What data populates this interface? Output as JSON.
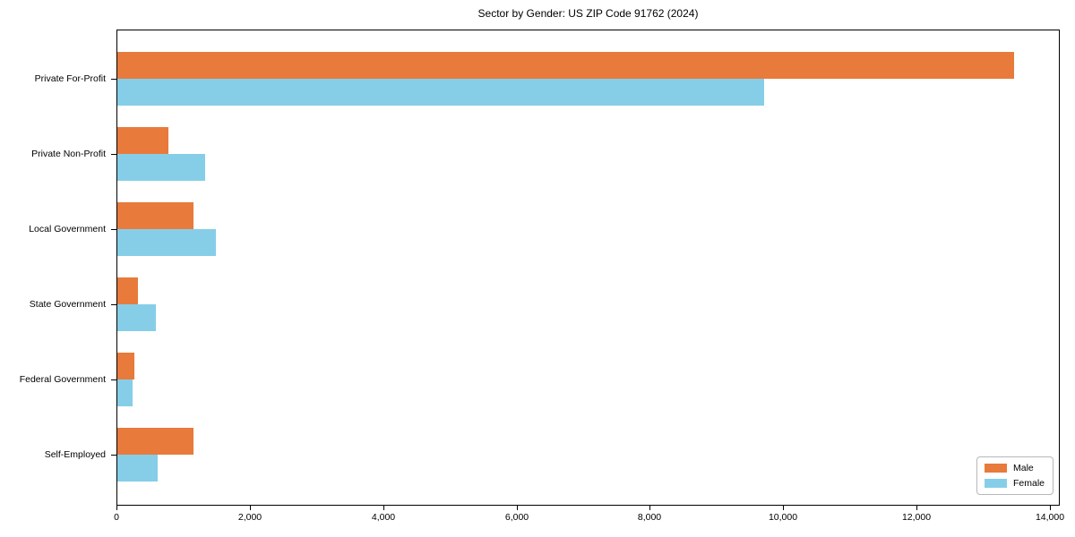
{
  "chart_data": {
    "type": "bar",
    "orientation": "horizontal",
    "title": "Sector by Gender: US ZIP Code 91762 (2024)",
    "categories": [
      "Private For-Profit",
      "Private Non-Profit",
      "Local Government",
      "State Government",
      "Federal Government",
      "Self-Employed"
    ],
    "series": [
      {
        "name": "Male",
        "color": "#E87A3C",
        "values": [
          13450,
          760,
          1140,
          310,
          255,
          1140
        ]
      },
      {
        "name": "Female",
        "color": "#86CEE8",
        "values": [
          9700,
          1320,
          1480,
          580,
          230,
          600
        ]
      }
    ],
    "xlabel": "",
    "ylabel": "",
    "xlim": [
      0,
      14120
    ],
    "x_ticks": [
      0,
      2000,
      4000,
      6000,
      8000,
      10000,
      12000,
      14000
    ],
    "x_tick_labels": [
      "0",
      "2,000",
      "4,000",
      "6,000",
      "8,000",
      "10,000",
      "12,000",
      "14,000"
    ],
    "legend_position": "lower right",
    "grid": false
  }
}
